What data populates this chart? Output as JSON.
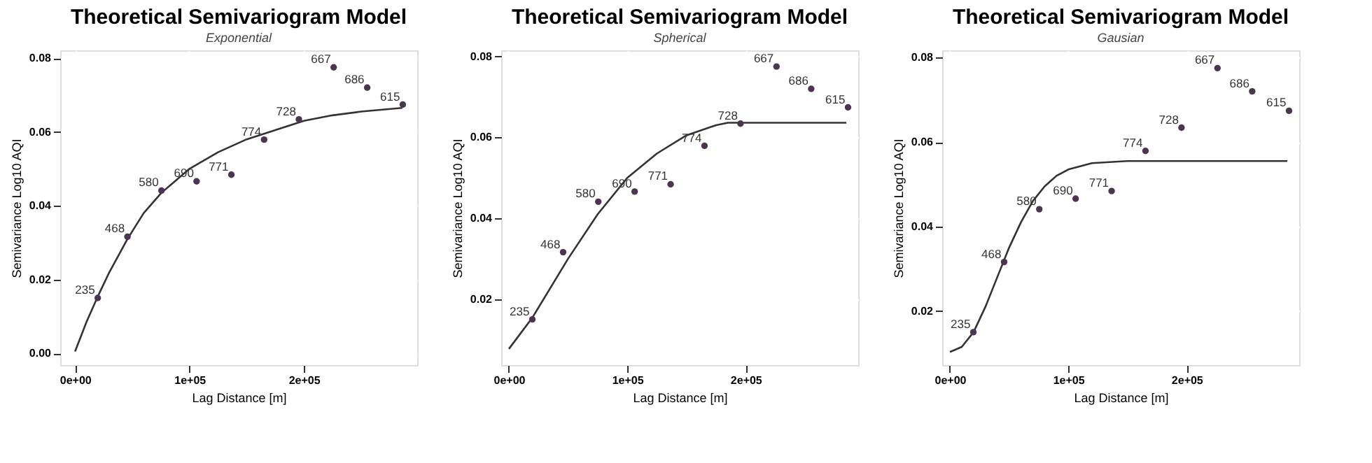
{
  "chart_data": [
    {
      "type": "scatter",
      "title": "Theoretical Semivariogram Model",
      "subtitle": "Exponential",
      "xlabel": "Lag Distance [m]",
      "ylabel": "Semivariance Log10 AQI",
      "xlim": [
        -13000,
        299000
      ],
      "ylim": [
        -0.0032,
        0.0821
      ],
      "xticks": [
        {
          "value": 0,
          "label": "0e+00"
        },
        {
          "value": 100000,
          "label": "1e+05"
        },
        {
          "value": 200000,
          "label": "2e+05"
        }
      ],
      "yticks": [
        {
          "value": 0,
          "label": "0.00"
        },
        0.02,
        0.04,
        0.06,
        0.08
      ],
      "grid": true,
      "annotations": [
        {
          "text": "235",
          "x": 19800,
          "y": 0.015
        },
        {
          "text": "468",
          "x": 45800,
          "y": 0.0316
        },
        {
          "text": "580",
          "x": 75500,
          "y": 0.0441
        },
        {
          "text": "690",
          "x": 106200,
          "y": 0.0466
        },
        {
          "text": "771",
          "x": 136600,
          "y": 0.0484
        },
        {
          "text": "774",
          "x": 165200,
          "y": 0.0579
        },
        {
          "text": "728",
          "x": 195600,
          "y": 0.0634
        },
        {
          "text": "667",
          "x": 226000,
          "y": 0.0775
        },
        {
          "text": "686",
          "x": 255300,
          "y": 0.072
        },
        {
          "text": "615",
          "x": 286400,
          "y": 0.0674
        }
      ],
      "series": [
        {
          "color": "#4b3650",
          "marker": "circle",
          "x": [
            19800,
            45800,
            75500,
            106200,
            136600,
            165200,
            195600,
            226000,
            255300,
            286400
          ],
          "values": [
            0.015,
            0.0316,
            0.0441,
            0.0466,
            0.0484,
            0.0579,
            0.0634,
            0.0775,
            0.072,
            0.0674
          ]
        },
        {
          "type": "line",
          "color": "#333333",
          "line_style": "solid",
          "x": [
            0,
            10000,
            20000,
            30000,
            45800,
            60000,
            75500,
            100000,
            125000,
            150000,
            175000,
            200000,
            225000,
            250000,
            286000
          ],
          "values": [
            0.0005,
            0.0085,
            0.0155,
            0.022,
            0.031,
            0.038,
            0.0435,
            0.05,
            0.0545,
            0.058,
            0.0605,
            0.063,
            0.0645,
            0.0655,
            0.0665
          ]
        }
      ]
    },
    {
      "type": "scatter",
      "title": "Theoretical Semivariogram Model",
      "subtitle": "Spherical",
      "xlabel": "Lag Distance [m]",
      "ylabel": "Semivariance Log10 AQI",
      "xlim": [
        -6500,
        295000
      ],
      "ylim": [
        0.0037,
        0.0815
      ],
      "xticks": [
        {
          "value": 0,
          "label": "0e+00"
        },
        {
          "value": 100000,
          "label": "1e+05"
        },
        {
          "value": 200000,
          "label": "2e+05"
        }
      ],
      "yticks": [
        0.02,
        0.04,
        0.06,
        0.08
      ],
      "grid": true,
      "annotations": [
        {
          "text": "235",
          "x": 19800,
          "y": 0.015
        },
        {
          "text": "468",
          "x": 45800,
          "y": 0.0316
        },
        {
          "text": "580",
          "x": 75500,
          "y": 0.0441
        },
        {
          "text": "690",
          "x": 106200,
          "y": 0.0466
        },
        {
          "text": "771",
          "x": 136600,
          "y": 0.0484
        },
        {
          "text": "774",
          "x": 165200,
          "y": 0.0579
        },
        {
          "text": "728",
          "x": 195600,
          "y": 0.0634
        },
        {
          "text": "667",
          "x": 226000,
          "y": 0.0775
        },
        {
          "text": "686",
          "x": 255300,
          "y": 0.072
        },
        {
          "text": "615",
          "x": 286400,
          "y": 0.0674
        }
      ],
      "series": [
        {
          "color": "#4b3650",
          "marker": "circle",
          "x": [
            19800,
            45800,
            75500,
            106200,
            136600,
            165200,
            195600,
            226000,
            255300,
            286400
          ],
          "values": [
            0.015,
            0.0316,
            0.0441,
            0.0466,
            0.0484,
            0.0579,
            0.0634,
            0.0775,
            0.072,
            0.0674
          ]
        },
        {
          "type": "line",
          "color": "#333333",
          "line_style": "solid",
          "x": [
            0,
            20000,
            50000,
            75000,
            100000,
            125000,
            150000,
            175000,
            185000,
            285000
          ],
          "values": [
            0.0077,
            0.0155,
            0.03,
            0.041,
            0.05,
            0.056,
            0.0605,
            0.063,
            0.0636,
            0.0636
          ]
        }
      ]
    },
    {
      "type": "scatter",
      "title": "Theoretical Semivariogram Model",
      "subtitle": "Gausian",
      "xlabel": "Lag Distance [m]",
      "ylabel": "Semivariance Log10 AQI",
      "xlim": [
        -6500,
        295000
      ],
      "ylim": [
        0.0072,
        0.0817
      ],
      "xticks": [
        {
          "value": 0,
          "label": "0e+00"
        },
        {
          "value": 100000,
          "label": "1e+05"
        },
        {
          "value": 200000,
          "label": "2e+05"
        }
      ],
      "yticks": [
        0.02,
        0.04,
        0.06,
        0.08
      ],
      "grid": true,
      "annotations": [
        {
          "text": "235",
          "x": 19800,
          "y": 0.015
        },
        {
          "text": "468",
          "x": 45800,
          "y": 0.0316
        },
        {
          "text": "580",
          "x": 75500,
          "y": 0.0441
        },
        {
          "text": "690",
          "x": 106200,
          "y": 0.0466
        },
        {
          "text": "771",
          "x": 136600,
          "y": 0.0484
        },
        {
          "text": "774",
          "x": 165200,
          "y": 0.0579
        },
        {
          "text": "728",
          "x": 195600,
          "y": 0.0634
        },
        {
          "text": "667",
          "x": 226000,
          "y": 0.0775
        },
        {
          "text": "686",
          "x": 255300,
          "y": 0.072
        },
        {
          "text": "615",
          "x": 286400,
          "y": 0.0674
        }
      ],
      "series": [
        {
          "color": "#4b3650",
          "marker": "circle",
          "x": [
            19800,
            45800,
            75500,
            106200,
            136600,
            165200,
            195600,
            226000,
            255300,
            286400
          ],
          "values": [
            0.015,
            0.0316,
            0.0441,
            0.0466,
            0.0484,
            0.0579,
            0.0634,
            0.0775,
            0.072,
            0.0674
          ]
        },
        {
          "type": "line",
          "color": "#333333",
          "line_style": "solid",
          "x": [
            0,
            10000,
            20000,
            30000,
            40000,
            50000,
            60000,
            70000,
            80000,
            90000,
            100000,
            120000,
            150000,
            285000
          ],
          "values": [
            0.0103,
            0.0115,
            0.015,
            0.021,
            0.028,
            0.035,
            0.041,
            0.046,
            0.0495,
            0.052,
            0.0535,
            0.055,
            0.0555,
            0.0555
          ]
        }
      ]
    }
  ]
}
